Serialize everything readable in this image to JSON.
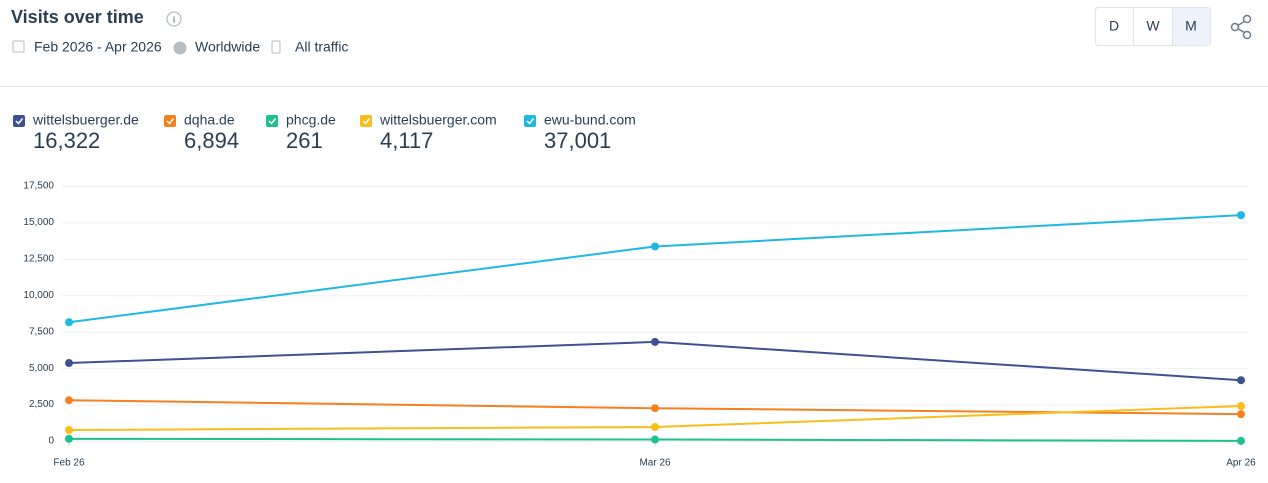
{
  "header": {
    "title": "Visits over time",
    "date_range": "Feb 2026 - Apr 2026",
    "region": "Worldwide",
    "traffic": "All traffic",
    "granularity": [
      "D",
      "W",
      "M"
    ],
    "selected": "M"
  },
  "chart_data": {
    "type": "line",
    "categories": [
      "Feb 26",
      "Mar 26",
      "Apr 26"
    ],
    "series": [
      {
        "name": "wittelsbuerger.de",
        "total": "16,322",
        "color": "#3e5192",
        "values": [
          5350,
          6800,
          4172
        ]
      },
      {
        "name": "dqha.de",
        "total": "6,894",
        "color": "#f4801f",
        "values": [
          2800,
          2250,
          1844
        ]
      },
      {
        "name": "phcg.de",
        "total": "261",
        "color": "#1ec08e",
        "values": [
          150,
          100,
          11
        ]
      },
      {
        "name": "wittelsbuerger.com",
        "total": "4,117",
        "color": "#fbbd1b",
        "values": [
          755,
          961,
          2401
        ]
      },
      {
        "name": "ewu-bund.com",
        "total": "37,001",
        "color": "#1fb8e3",
        "values": [
          8150,
          13350,
          15501
        ]
      }
    ],
    "ylim": [
      0,
      17500
    ],
    "yticks": [
      0,
      {
        "value": 2500,
        "label": "2,500"
      },
      {
        "value": 5000,
        "label": "5,000"
      },
      {
        "value": 7500,
        "label": "7,500"
      },
      {
        "value": 10000,
        "label": "10,000"
      },
      {
        "value": 12500,
        "label": "12,500"
      },
      {
        "value": 15000,
        "label": "15,000"
      },
      {
        "value": 17500,
        "label": "17,500"
      }
    ],
    "grid": true
  }
}
